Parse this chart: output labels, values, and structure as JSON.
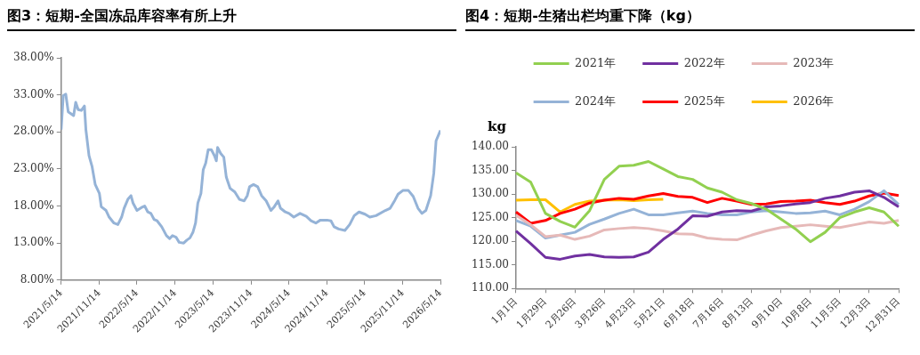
{
  "chart_data": [
    {
      "type": "line",
      "title": "图3：短期-全国冻品库容率有所上升",
      "marker": "none",
      "x": [
        "2021-05-14",
        "2021-05-24",
        "2021-06-05",
        "2021-06-17",
        "2021-06-28",
        "2021-07-13",
        "2021-07-23",
        "2021-08-04",
        "2021-08-19",
        "2021-09-03",
        "2021-09-10",
        "2021-09-25",
        "2021-10-10",
        "2021-10-25",
        "2021-11-14",
        "2021-11-23",
        "2021-12-16",
        "2021-12-31",
        "2022-01-23",
        "2022-02-11",
        "2022-03-01",
        "2022-03-13",
        "2022-03-31",
        "2022-04-15",
        "2022-04-25",
        "2022-05-14",
        "2022-06-05",
        "2022-06-20",
        "2022-07-05",
        "2022-07-20",
        "2022-08-04",
        "2022-08-19",
        "2022-09-10",
        "2022-10-03",
        "2022-10-18",
        "2022-11-01",
        "2022-11-18",
        "2022-12-03",
        "2022-12-25",
        "2023-01-09",
        "2023-01-24",
        "2023-02-08",
        "2023-02-20",
        "2023-03-03",
        "2023-03-18",
        "2023-03-29",
        "2023-04-10",
        "2023-04-22",
        "2023-05-07",
        "2023-05-22",
        "2023-05-31",
        "2023-06-06",
        "2023-06-21",
        "2023-07-06",
        "2023-07-18",
        "2023-08-05",
        "2023-08-28",
        "2023-09-19",
        "2023-10-12",
        "2023-10-27",
        "2023-11-07",
        "2023-11-26",
        "2023-12-16",
        "2024-01-04",
        "2024-01-26",
        "2024-02-18",
        "2024-03-05",
        "2024-03-23",
        "2024-04-04",
        "2024-04-27",
        "2024-05-15",
        "2024-06-07",
        "2024-07-07",
        "2024-08-06",
        "2024-08-29",
        "2024-09-21",
        "2024-10-13",
        "2024-11-14",
        "2024-12-03",
        "2024-12-18",
        "2025-01-09",
        "2025-02-08",
        "2025-03-03",
        "2025-03-25",
        "2025-04-17",
        "2025-05-16",
        "2025-06-08",
        "2025-07-08",
        "2025-08-22",
        "2025-09-14",
        "2025-10-07",
        "2025-10-22",
        "2025-11-14",
        "2025-12-11",
        "2026-01-03",
        "2026-01-26",
        "2026-02-14",
        "2026-03-05",
        "2026-03-28",
        "2026-04-12",
        "2026-04-23",
        "2026-05-14"
      ],
      "series": [
        {
          "color": "#95b3d7",
          "values": [
            28.3,
            32.9,
            33.1,
            30.7,
            30.5,
            30.2,
            32.0,
            31.0,
            30.9,
            31.5,
            28.3,
            24.8,
            23.3,
            20.9,
            19.7,
            17.9,
            17.4,
            16.5,
            15.7,
            15.5,
            16.5,
            17.7,
            18.9,
            19.4,
            18.4,
            17.4,
            17.8,
            18.0,
            17.2,
            17.0,
            16.2,
            16.0,
            15.2,
            14.0,
            13.6,
            14.0,
            13.8,
            13.1,
            13.0,
            13.4,
            13.7,
            14.5,
            15.7,
            18.4,
            19.7,
            22.9,
            23.8,
            25.6,
            25.6,
            24.8,
            24.1,
            25.9,
            25.1,
            24.6,
            21.9,
            20.4,
            19.9,
            18.9,
            18.7,
            19.4,
            20.6,
            20.9,
            20.6,
            19.4,
            18.7,
            17.4,
            17.9,
            18.7,
            17.7,
            17.2,
            17.0,
            16.5,
            17.0,
            16.6,
            16.0,
            15.7,
            16.1,
            16.1,
            16.0,
            15.2,
            14.9,
            14.7,
            15.5,
            16.7,
            17.2,
            16.9,
            16.5,
            16.7,
            17.4,
            17.7,
            18.8,
            19.6,
            20.1,
            20.1,
            19.3,
            17.7,
            17.0,
            17.4,
            19.4,
            22.4,
            26.8,
            28.2
          ]
        }
      ],
      "xlim": [
        "2021-05-14",
        "2026-05-14"
      ],
      "xticks": [
        {
          "value": "2021-05-14",
          "label": "2021/5/14"
        },
        {
          "value": "2021-11-14",
          "label": "2021/11/14"
        },
        {
          "value": "2022-05-14",
          "label": "2022/5/14"
        },
        {
          "value": "2022-11-14",
          "label": "2022/11/14"
        },
        {
          "value": "2023-05-14",
          "label": "2023/5/14"
        },
        {
          "value": "2023-11-14",
          "label": "2023/11/14"
        },
        {
          "value": "2024-05-14",
          "label": "2024/5/14"
        },
        {
          "value": "2024-11-14",
          "label": "2024/11/14"
        },
        {
          "value": "2025-05-14",
          "label": "2025/5/14"
        },
        {
          "value": "2025-11-14",
          "label": "2025/11/14"
        },
        {
          "value": "2026-05-14",
          "label": "2026/5/14"
        }
      ],
      "ylim": [
        8,
        38
      ],
      "yticks": [
        {
          "value": 8,
          "label": "8.00%"
        },
        {
          "value": 13,
          "label": "13.00%"
        },
        {
          "value": 18,
          "label": "18.00%"
        },
        {
          "value": 23,
          "label": "23.00%"
        },
        {
          "value": 28,
          "label": "28.00%"
        },
        {
          "value": 33,
          "label": "33.00%"
        },
        {
          "value": 38,
          "label": "38.00%"
        }
      ]
    },
    {
      "type": "line",
      "title": "图4：短期-生猪出栏均重下降（kg）",
      "ylabel": "kg",
      "marker": "none",
      "legend": "top",
      "categories": [
        "1月1日",
        null,
        "1月29日",
        null,
        "2月26日",
        null,
        "3月26日",
        null,
        "4月23日",
        null,
        "5月21日",
        null,
        "6月18日",
        null,
        "7月16日",
        null,
        "8月13日",
        null,
        "9月10日",
        null,
        "10月8日",
        null,
        "11月5日",
        null,
        "12月3日",
        null,
        "12月31日"
      ],
      "series": [
        {
          "name": "2021年",
          "color": "#92d050",
          "values": [
            134.5,
            132.5,
            125.9,
            124.2,
            123.0,
            126.5,
            133.1,
            135.9,
            136.1,
            136.9,
            135.3,
            133.7,
            133.1,
            131.3,
            130.4,
            128.8,
            128.0,
            126.8,
            124.7,
            122.6,
            119.9,
            121.9,
            125.0,
            126.2,
            127.1,
            126.2,
            123.2
          ]
        },
        {
          "name": "2022年",
          "color": "#7030a0",
          "values": [
            122.2,
            119.5,
            116.6,
            116.2,
            116.9,
            117.2,
            116.7,
            116.6,
            116.7,
            117.7,
            120.4,
            122.6,
            125.4,
            125.3,
            126.2,
            126.5,
            126.4,
            127.3,
            127.5,
            127.9,
            128.2,
            129.1,
            129.6,
            130.4,
            130.7,
            129.3,
            127.3
          ]
        },
        {
          "name": "2023年",
          "color": "#e6b9b8",
          "values": [
            125.5,
            123.5,
            121.0,
            121.3,
            120.4,
            121.1,
            122.4,
            122.7,
            122.9,
            122.7,
            122.2,
            121.6,
            121.5,
            120.7,
            120.4,
            120.3,
            121.3,
            122.2,
            122.9,
            123.2,
            123.5,
            123.2,
            122.9,
            123.5,
            124.1,
            123.8,
            124.4
          ]
        },
        {
          "name": "2024年",
          "color": "#95b3d7",
          "values": [
            124.4,
            123.2,
            120.7,
            121.3,
            121.9,
            123.6,
            124.7,
            125.9,
            126.8,
            125.6,
            125.6,
            126.0,
            126.4,
            125.9,
            125.6,
            125.6,
            126.2,
            126.5,
            126.2,
            125.9,
            126.0,
            126.4,
            125.6,
            126.8,
            128.4,
            130.7,
            127.8
          ]
        },
        {
          "name": "2025年",
          "color": "#ff0000",
          "values": [
            126.2,
            123.8,
            124.4,
            125.9,
            126.8,
            128.1,
            128.7,
            129.1,
            128.9,
            129.6,
            130.1,
            129.5,
            129.3,
            128.2,
            129.1,
            128.5,
            127.8,
            127.9,
            128.4,
            128.5,
            128.7,
            128.2,
            127.8,
            128.5,
            129.6,
            130.2,
            129.7
          ]
        },
        {
          "name": "2026年",
          "color": "#ffc000",
          "values": [
            128.7,
            128.8,
            128.8,
            126.2,
            127.8,
            128.5,
            128.7,
            128.8,
            128.6,
            128.8,
            128.9,
            null,
            null,
            null,
            null,
            null,
            null,
            null,
            null,
            null,
            null,
            null,
            null,
            null,
            null,
            null,
            null
          ]
        }
      ],
      "ylim": [
        110,
        140
      ],
      "yticks": [
        {
          "value": 110,
          "label": "110.00"
        },
        {
          "value": 115,
          "label": "115.00"
        },
        {
          "value": 120,
          "label": "120.00"
        },
        {
          "value": 125,
          "label": "125.00"
        },
        {
          "value": 130,
          "label": "130.00"
        },
        {
          "value": 135,
          "label": "135.00"
        },
        {
          "value": 140,
          "label": "140.00"
        }
      ]
    }
  ]
}
